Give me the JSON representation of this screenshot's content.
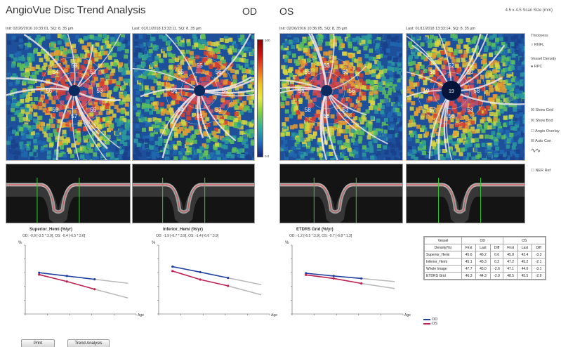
{
  "header": {
    "title": "AngioVue Disc Trend Analysis",
    "od": "OD",
    "os": "OS",
    "scan_size": "4.5 x 4.5 Scan Size (mm)"
  },
  "scans": [
    {
      "label": "Init: 02/26/2016 10:33:01, SQ: 8, 35 µm"
    },
    {
      "label": "Last: 01/11/2018 13:33:11, SQ: 8, 35 µm"
    },
    {
      "label": "Init: 02/26/2016 10:36:05, SQ: 8, 35 µm"
    },
    {
      "label": "Last: 01/11/2018 13:33:14, SQ: 8, 35 µm"
    }
  ],
  "sector_values": [
    [
      "58",
      "53",
      "53",
      "55",
      "57",
      "59",
      "56",
      "54"
    ],
    [
      "55",
      "56",
      "54",
      "53",
      "55",
      "54",
      "56",
      "55"
    ],
    [
      "53",
      "60",
      "56",
      "53",
      "58",
      "58",
      "56",
      "55"
    ],
    [
      "52",
      "55",
      "58",
      "53",
      "56",
      "57",
      "19",
      "58"
    ]
  ],
  "colorbar": {
    "top": "100",
    "bottom": "0.0"
  },
  "sidebar": {
    "thickness_label": "Thickness",
    "rnfl_label": "RNFL",
    "vessel_density_label": "Vessel Density",
    "rpc_label": "RPC",
    "show_grid": "Show Grid",
    "show_bnd": "Show Bnd",
    "angio_overlay": "Angio Overlay",
    "auto_contrast": "Auto Con",
    "nerve_head_label": "NER Ref"
  },
  "charts": [
    {
      "title": "Superior_Hemi (%/yr)",
      "subtitle": "OD: -0.9 [-3.5 *:3.9], OS: -0.4 [-6.5 *:3.6]"
    },
    {
      "title": "Inferior_Hemi (%/yr)",
      "subtitle": "OD: -1.9 [-6.7 *:3.9], OS: -1.4 [-6.6 *:3.9]"
    },
    {
      "title": "ETDRS Grid (%/yr)",
      "subtitle": "OD: -1.2 [-6.5 *:3.9], OS: -0.7 [-6.8 *:1.3]"
    }
  ],
  "chart_data": [
    {
      "type": "line",
      "title": "Superior_Hemi (%/yr)",
      "ylabel": "%",
      "xlabel": "Age",
      "series": [
        {
          "name": "OD",
          "x": [
            0,
            1,
            2
          ],
          "values": [
            55.0,
            53.8,
            52.6
          ]
        },
        {
          "name": "OS",
          "x": [
            0,
            1,
            2
          ],
          "values": [
            54.3,
            51.8,
            49.0
          ]
        }
      ]
    },
    {
      "type": "line",
      "title": "Inferior_Hemi (%/yr)",
      "ylabel": "%",
      "xlabel": "Age",
      "series": [
        {
          "name": "OD",
          "x": [
            0,
            1,
            2
          ],
          "values": [
            57.2,
            55.2,
            53.1
          ]
        },
        {
          "name": "OS",
          "x": [
            0,
            1,
            2
          ],
          "values": [
            55.6,
            52.5,
            50.2
          ]
        }
      ]
    },
    {
      "type": "line",
      "title": "ETDRS Grid (%/yr)",
      "ylabel": "%",
      "xlabel": "Age",
      "series": [
        {
          "name": "OD",
          "x": [
            0,
            1,
            2
          ],
          "values": [
            54.8,
            53.8,
            52.9
          ]
        },
        {
          "name": "OS",
          "x": [
            0,
            1,
            2
          ],
          "values": [
            54.2,
            52.9,
            51.1
          ]
        }
      ]
    }
  ],
  "legend": [
    {
      "name": "OD",
      "color": "#2040a0"
    },
    {
      "name": "OS",
      "color": "#c02050"
    }
  ],
  "table": {
    "header1": [
      "Vessel",
      "OD",
      "OS"
    ],
    "header2": [
      "Density(%)",
      "First",
      "Last",
      "Diff",
      "First",
      "Last",
      "Diff"
    ],
    "rows": [
      [
        "Superior_Hemi",
        "45.6",
        "46.2",
        "0.6",
        "45.8",
        "42.4",
        "-3.3"
      ],
      [
        "Inferior_Hemi",
        "45.1",
        "45.3",
        "0.2",
        "47.2",
        "45.2",
        "-2.1"
      ],
      [
        "Whole Image",
        "47.7",
        "45.0",
        "-2.6",
        "47.1",
        "44.0",
        "-3.1"
      ],
      [
        "ETDRS Grid",
        "46.3",
        "44.3",
        "-2.0",
        "48.5",
        "45.5",
        "-2.9"
      ]
    ]
  },
  "buttons": {
    "print": "Print",
    "trend": "Trend Analysis"
  },
  "colors": {
    "od": "#2040a0",
    "os": "#c02050",
    "trend_gray": "#b8b8b8"
  }
}
